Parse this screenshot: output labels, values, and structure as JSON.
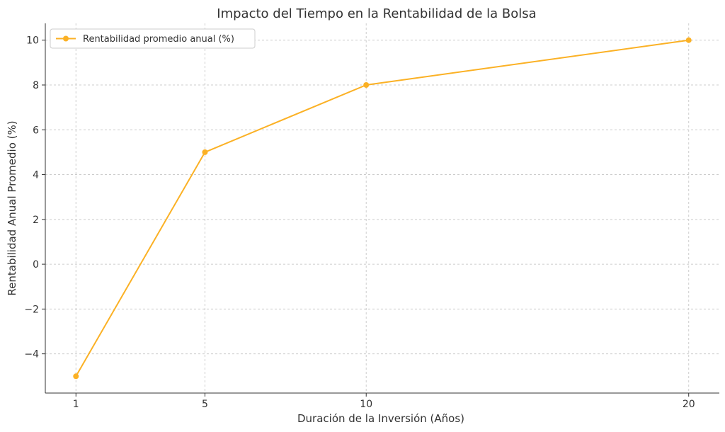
{
  "chart_data": {
    "type": "line",
    "title": "Impacto del Tiempo en la Rentabilidad de la Bolsa",
    "xlabel": "Duración de la Inversión (Años)",
    "ylabel": "Rentabilidad Anual Promedio (%)",
    "x": [
      1,
      5,
      10,
      20
    ],
    "series": [
      {
        "name": "Rentabilidad promedio anual (%)",
        "values": [
          -5,
          5,
          8,
          10
        ],
        "color": "#FBB125"
      }
    ],
    "xticks": [
      "1",
      "5",
      "10",
      "20"
    ],
    "yticks": [
      "−4",
      "−2",
      "0",
      "2",
      "4",
      "6",
      "8",
      "10"
    ],
    "xlim": [
      0.05,
      20.95
    ],
    "ylim": [
      -5.75,
      10.75
    ],
    "grid": true,
    "grid_style": "dashed",
    "legend_position": "top-left"
  }
}
